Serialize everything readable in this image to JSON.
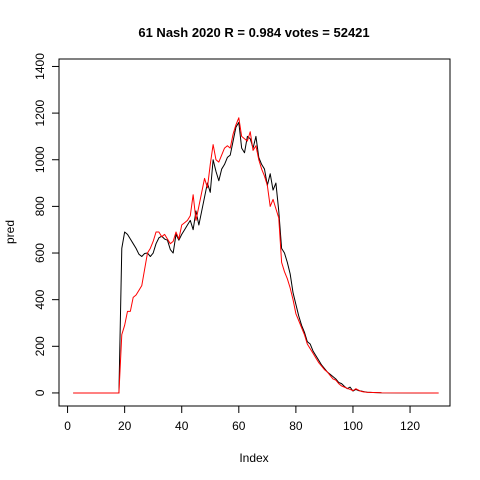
{
  "chart_data": {
    "type": "line",
    "title": "61 Nash 2020 R = 0.984 votes = 52421",
    "xlabel": "Index",
    "ylabel": "pred",
    "xlim": [
      -3,
      134
    ],
    "ylim": [
      -56,
      1432
    ],
    "x_ticks": [
      0,
      20,
      40,
      60,
      80,
      100,
      120
    ],
    "y_ticks": [
      0,
      200,
      400,
      600,
      800,
      1000,
      1200,
      1400
    ],
    "grid": false,
    "legend": "none",
    "series": [
      {
        "color": "#000000",
        "points": [
          [
            2,
            0
          ],
          [
            18,
            0
          ],
          [
            19,
            620
          ],
          [
            20,
            690
          ],
          [
            21,
            680
          ],
          [
            22,
            660
          ],
          [
            23,
            640
          ],
          [
            24,
            620
          ],
          [
            25,
            595
          ],
          [
            26,
            585
          ],
          [
            27,
            598
          ],
          [
            28,
            600
          ],
          [
            29,
            585
          ],
          [
            30,
            600
          ],
          [
            31,
            640
          ],
          [
            32,
            665
          ],
          [
            33,
            672
          ],
          [
            34,
            660
          ],
          [
            35,
            655
          ],
          [
            36,
            615
          ],
          [
            37,
            600
          ],
          [
            38,
            680
          ],
          [
            39,
            655
          ],
          [
            40,
            680
          ],
          [
            41,
            700
          ],
          [
            42,
            720
          ],
          [
            43,
            740
          ],
          [
            44,
            700
          ],
          [
            45,
            780
          ],
          [
            46,
            720
          ],
          [
            47,
            780
          ],
          [
            48,
            840
          ],
          [
            49,
            900
          ],
          [
            50,
            860
          ],
          [
            51,
            1000
          ],
          [
            52,
            950
          ],
          [
            53,
            910
          ],
          [
            54,
            960
          ],
          [
            55,
            980
          ],
          [
            56,
            1010
          ],
          [
            57,
            1020
          ],
          [
            58,
            1080
          ],
          [
            59,
            1140
          ],
          [
            60,
            1160
          ],
          [
            61,
            1050
          ],
          [
            62,
            1030
          ],
          [
            63,
            1100
          ],
          [
            64,
            1090
          ],
          [
            65,
            1050
          ],
          [
            66,
            1100
          ],
          [
            67,
            1010
          ],
          [
            68,
            980
          ],
          [
            69,
            960
          ],
          [
            70,
            890
          ],
          [
            71,
            940
          ],
          [
            72,
            870
          ],
          [
            73,
            900
          ],
          [
            74,
            780
          ],
          [
            75,
            620
          ],
          [
            76,
            600
          ],
          [
            77,
            560
          ],
          [
            78,
            510
          ],
          [
            79,
            430
          ],
          [
            80,
            380
          ],
          [
            81,
            330
          ],
          [
            82,
            290
          ],
          [
            83,
            260
          ],
          [
            84,
            220
          ],
          [
            85,
            210
          ],
          [
            86,
            180
          ],
          [
            87,
            160
          ],
          [
            88,
            140
          ],
          [
            89,
            120
          ],
          [
            90,
            105
          ],
          [
            91,
            90
          ],
          [
            92,
            80
          ],
          [
            93,
            70
          ],
          [
            94,
            60
          ],
          [
            95,
            45
          ],
          [
            96,
            40
          ],
          [
            97,
            28
          ],
          [
            98,
            18
          ],
          [
            99,
            25
          ],
          [
            100,
            8
          ],
          [
            101,
            15
          ],
          [
            102,
            10
          ],
          [
            103,
            8
          ],
          [
            104,
            5
          ],
          [
            105,
            3
          ],
          [
            107,
            2
          ],
          [
            110,
            1
          ],
          [
            130,
            0
          ]
        ]
      },
      {
        "color": "#ff0000",
        "points": [
          [
            2,
            0
          ],
          [
            18,
            0
          ],
          [
            19,
            250
          ],
          [
            20,
            290
          ],
          [
            21,
            350
          ],
          [
            22,
            350
          ],
          [
            23,
            410
          ],
          [
            24,
            420
          ],
          [
            25,
            440
          ],
          [
            26,
            460
          ],
          [
            27,
            530
          ],
          [
            28,
            600
          ],
          [
            29,
            620
          ],
          [
            30,
            650
          ],
          [
            31,
            690
          ],
          [
            32,
            690
          ],
          [
            33,
            670
          ],
          [
            34,
            680
          ],
          [
            35,
            660
          ],
          [
            36,
            640
          ],
          [
            37,
            650
          ],
          [
            38,
            690
          ],
          [
            39,
            660
          ],
          [
            40,
            720
          ],
          [
            41,
            730
          ],
          [
            42,
            740
          ],
          [
            43,
            760
          ],
          [
            44,
            850
          ],
          [
            45,
            740
          ],
          [
            46,
            800
          ],
          [
            47,
            860
          ],
          [
            48,
            920
          ],
          [
            49,
            880
          ],
          [
            50,
            980
          ],
          [
            51,
            1065
          ],
          [
            52,
            1000
          ],
          [
            53,
            990
          ],
          [
            54,
            1020
          ],
          [
            55,
            1050
          ],
          [
            56,
            1060
          ],
          [
            57,
            1050
          ],
          [
            58,
            1110
          ],
          [
            59,
            1150
          ],
          [
            60,
            1180
          ],
          [
            61,
            1100
          ],
          [
            62,
            1090
          ],
          [
            63,
            1080
          ],
          [
            64,
            1120
          ],
          [
            65,
            1040
          ],
          [
            66,
            1060
          ],
          [
            67,
            1000
          ],
          [
            68,
            960
          ],
          [
            69,
            930
          ],
          [
            70,
            890
          ],
          [
            71,
            800
          ],
          [
            72,
            830
          ],
          [
            73,
            790
          ],
          [
            74,
            750
          ],
          [
            75,
            560
          ],
          [
            76,
            520
          ],
          [
            77,
            490
          ],
          [
            78,
            450
          ],
          [
            79,
            400
          ],
          [
            80,
            340
          ],
          [
            81,
            310
          ],
          [
            82,
            280
          ],
          [
            83,
            250
          ],
          [
            84,
            210
          ],
          [
            85,
            190
          ],
          [
            86,
            170
          ],
          [
            87,
            150
          ],
          [
            88,
            130
          ],
          [
            89,
            115
          ],
          [
            90,
            100
          ],
          [
            91,
            90
          ],
          [
            92,
            75
          ],
          [
            93,
            60
          ],
          [
            94,
            55
          ],
          [
            95,
            40
          ],
          [
            96,
            30
          ],
          [
            97,
            25
          ],
          [
            98,
            20
          ],
          [
            99,
            15
          ],
          [
            100,
            10
          ],
          [
            101,
            18
          ],
          [
            102,
            12
          ],
          [
            103,
            6
          ],
          [
            104,
            4
          ],
          [
            105,
            3
          ],
          [
            107,
            2
          ],
          [
            110,
            1
          ],
          [
            130,
            0
          ]
        ]
      }
    ]
  }
}
